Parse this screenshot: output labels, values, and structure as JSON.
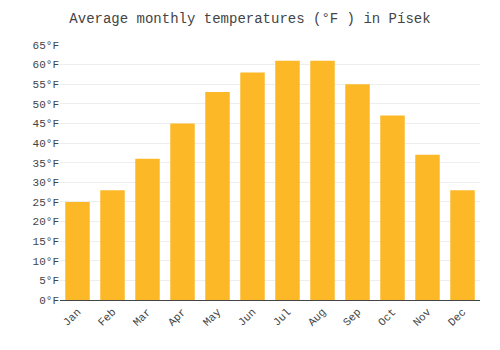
{
  "chart_data": {
    "type": "bar",
    "title": "Average monthly temperatures (°F ) in Písek",
    "categories": [
      "Jan",
      "Feb",
      "Mar",
      "Apr",
      "May",
      "Jun",
      "Jul",
      "Aug",
      "Sep",
      "Oct",
      "Nov",
      "Dec"
    ],
    "values": [
      25,
      28,
      36,
      45,
      53,
      58,
      61,
      61,
      55,
      47,
      37,
      28
    ],
    "color": "#FDB827",
    "ylim": [
      0,
      65
    ],
    "yticks": [
      {
        "value": 0,
        "label": "0°F"
      },
      {
        "value": 5,
        "label": "5°F"
      },
      {
        "value": 10,
        "label": "10°F"
      },
      {
        "value": 15,
        "label": "15°F"
      },
      {
        "value": 20,
        "label": "20°F"
      },
      {
        "value": 25,
        "label": "25°F"
      },
      {
        "value": 30,
        "label": "30°F"
      },
      {
        "value": 35,
        "label": "35°F"
      },
      {
        "value": 40,
        "label": "40°F"
      },
      {
        "value": 45,
        "label": "45°F"
      },
      {
        "value": 50,
        "label": "50°F"
      },
      {
        "value": 55,
        "label": "55°F"
      },
      {
        "value": 60,
        "label": "60°F"
      },
      {
        "value": 65,
        "label": "65°F"
      }
    ],
    "grid": true
  }
}
